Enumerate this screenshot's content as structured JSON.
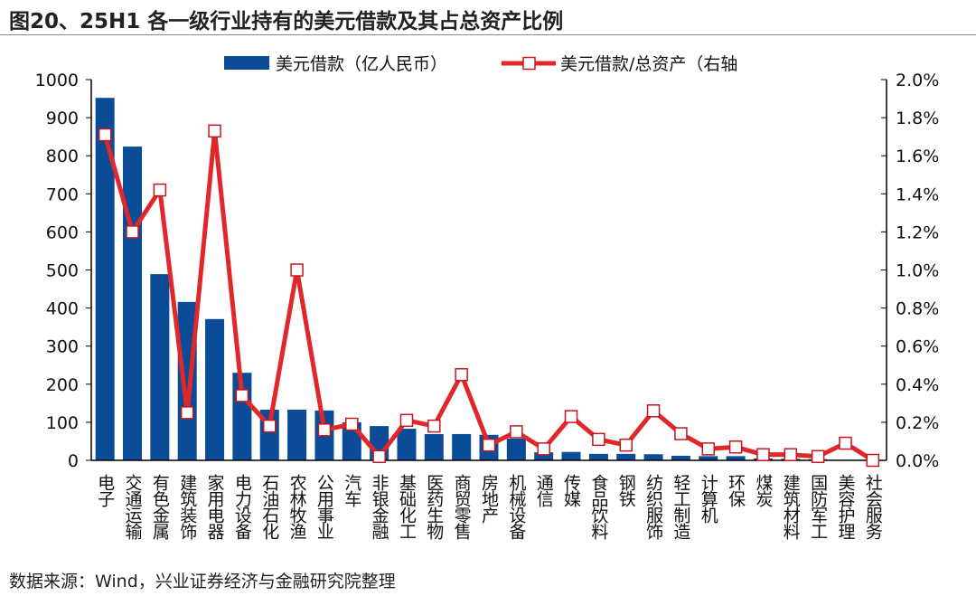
{
  "title": "图20、25H1 各一级行业持有的美元借款及其占总资产比例",
  "source": "数据来源：Wind，兴业证券经济与金融研究院整理",
  "chart_data": {
    "type": "bar+line",
    "title": "图20、25H1 各一级行业持有的美元借款及其占总资产比例",
    "categories": [
      "电子",
      "交通运输",
      "有色金属",
      "建筑装饰",
      "家用电器",
      "电力设备",
      "石油石化",
      "农林牧渔",
      "公用事业",
      "汽车",
      "非银金融",
      "基础化工",
      "医药生物",
      "商贸零售",
      "房地产",
      "机械设备",
      "通信",
      "传媒",
      "食品饮料",
      "钢铁",
      "纺织服饰",
      "轻工制造",
      "计算机",
      "环保",
      "煤炭",
      "建筑材料",
      "国防军工",
      "美容护理",
      "社会服务"
    ],
    "series": [
      {
        "name": "美元借款（亿人民币）",
        "type": "bar",
        "axis": "left",
        "color": "#0a4c97",
        "values": [
          952,
          824,
          489,
          416,
          371,
          230,
          133,
          133,
          131,
          100,
          90,
          83,
          69,
          69,
          67,
          57,
          21,
          22,
          17,
          17,
          16,
          12,
          11,
          11,
          5,
          4,
          3,
          1,
          1
        ]
      },
      {
        "name": "美元借款/总资产（右轴",
        "type": "line",
        "axis": "right",
        "color": "#e0282a",
        "values": [
          1.71,
          1.2,
          1.42,
          0.25,
          1.73,
          0.34,
          0.18,
          1.0,
          0.16,
          0.19,
          0.02,
          0.21,
          0.18,
          0.45,
          0.08,
          0.15,
          0.06,
          0.23,
          0.11,
          0.08,
          0.26,
          0.14,
          0.06,
          0.07,
          0.03,
          0.03,
          0.02,
          0.09,
          0.0
        ]
      }
    ],
    "left_axis": {
      "min": 0,
      "max": 1000,
      "ticks": [
        "0",
        "100",
        "200",
        "300",
        "400",
        "500",
        "600",
        "700",
        "800",
        "900",
        "1000"
      ]
    },
    "right_axis": {
      "min": 0,
      "max": 2.0,
      "unit": "%",
      "ticks": [
        "0.0%",
        "0.2%",
        "0.4%",
        "0.6%",
        "0.8%",
        "1.0%",
        "1.2%",
        "1.4%",
        "1.6%",
        "1.8%",
        "2.0%"
      ]
    },
    "legend": "top-center",
    "grid": false
  }
}
